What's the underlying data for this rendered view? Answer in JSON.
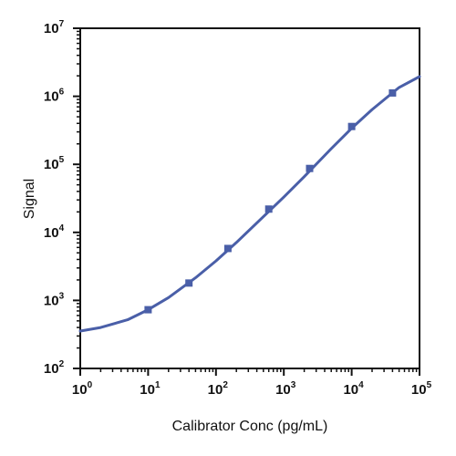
{
  "chart_data": {
    "type": "scatter",
    "xlabel": "Calibrator Conc (pg/mL)",
    "ylabel": "Signal",
    "xscale": "log",
    "yscale": "log",
    "xlim": [
      1,
      100000
    ],
    "ylim": [
      100,
      10000000
    ],
    "x_ticks": [
      {
        "base": "10",
        "exp": "0"
      },
      {
        "base": "10",
        "exp": "1"
      },
      {
        "base": "10",
        "exp": "2"
      },
      {
        "base": "10",
        "exp": "3"
      },
      {
        "base": "10",
        "exp": "4"
      },
      {
        "base": "10",
        "exp": "5"
      }
    ],
    "y_ticks": [
      {
        "base": "10",
        "exp": "2"
      },
      {
        "base": "10",
        "exp": "3"
      },
      {
        "base": "10",
        "exp": "4"
      },
      {
        "base": "10",
        "exp": "5"
      },
      {
        "base": "10",
        "exp": "6"
      },
      {
        "base": "10",
        "exp": "7"
      }
    ],
    "grid": false,
    "legend": "none",
    "series": [
      {
        "marker": "square",
        "color": "#4a5fa8",
        "points": [
          {
            "x": 10,
            "y": 730
          },
          {
            "x": 40,
            "y": 1800
          },
          {
            "x": 150,
            "y": 5800
          },
          {
            "x": 600,
            "y": 22000
          },
          {
            "x": 2400,
            "y": 87000
          },
          {
            "x": 10000,
            "y": 360000
          },
          {
            "x": 40000,
            "y": 1120000
          }
        ],
        "fit_curve": {
          "model": "4PL",
          "color": "#4a5fa8",
          "x": [
            1,
            2,
            5,
            10,
            20,
            50,
            100,
            200,
            500,
            1000,
            2000,
            5000,
            10000,
            20000,
            50000,
            100000
          ],
          "y": [
            355,
            400,
            520,
            730,
            1100,
            2150,
            3800,
            7100,
            17000,
            33000,
            66000,
            170000,
            340000,
            640000,
            1350000,
            1950000
          ]
        }
      }
    ]
  }
}
